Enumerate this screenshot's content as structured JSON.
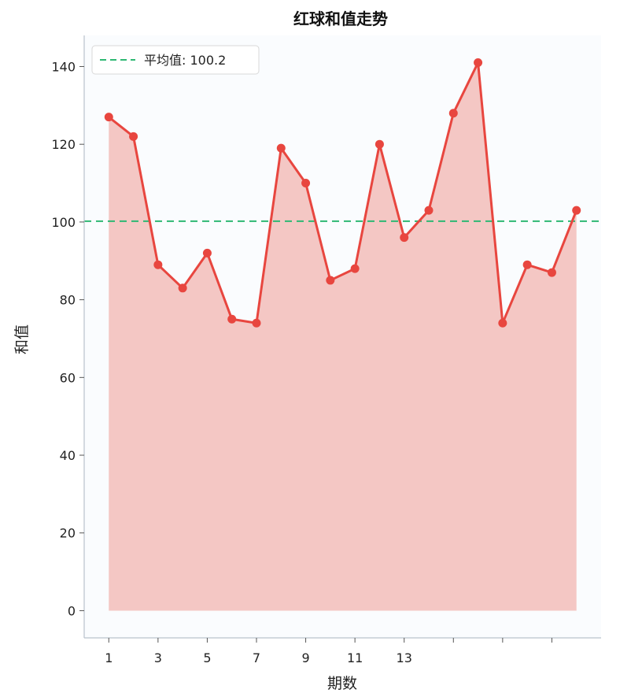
{
  "chart_data": {
    "type": "line",
    "title": "红球和值走势",
    "xlabel": "期数",
    "ylabel": "和值",
    "x": [
      1,
      2,
      3,
      4,
      5,
      6,
      7,
      8,
      9,
      10,
      11,
      12,
      13,
      14,
      15,
      16,
      17,
      18,
      19,
      20
    ],
    "series": [
      {
        "values": [
          127,
          122,
          89,
          83,
          92,
          75,
          74,
          119,
          110,
          85,
          88,
          120,
          96,
          103,
          128,
          141,
          74,
          89,
          87,
          103
        ],
        "color": "#e8463f",
        "fill_color": "#f2b9b5"
      }
    ],
    "reference_line": {
      "value": 100.2,
      "label": "平均值: 100.2",
      "color": "#2eb873",
      "style": "dashed"
    },
    "xticks": [
      1,
      3,
      5,
      7,
      9,
      11,
      13,
      15,
      17,
      19
    ],
    "xtick_labels": [
      "1",
      "3",
      "5",
      "7",
      "9",
      "11",
      "13",
      "",
      "",
      ""
    ],
    "yticks": [
      0,
      20,
      40,
      60,
      80,
      100,
      120,
      140
    ],
    "ytick_labels": [
      "0",
      "20",
      "40",
      "60",
      "80",
      "100",
      "120",
      "140"
    ],
    "xlim": [
      0,
      21
    ],
    "ylim": [
      -7,
      148
    ],
    "grid": false,
    "legend_position": "top-left"
  }
}
